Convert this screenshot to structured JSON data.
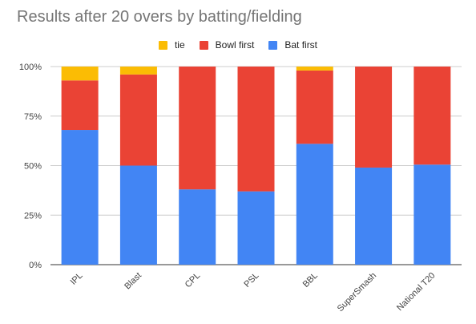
{
  "chart_data": {
    "type": "bar",
    "stacked": true,
    "title": "Results after 20 overs by batting/fielding",
    "xlabel": "",
    "ylabel": "",
    "ylim": [
      0,
      1
    ],
    "y_ticks": [
      "0%",
      "25%",
      "50%",
      "75%",
      "100%"
    ],
    "grid": true,
    "legend_position": "top",
    "categories": [
      "IPL",
      "Blast",
      "CPL",
      "PSL",
      "BBL",
      "SuperSmash",
      "National T20"
    ],
    "series": [
      {
        "name": "Bat first",
        "color": "#4285F4",
        "values": [
          0.68,
          0.5,
          0.38,
          0.37,
          0.61,
          0.49,
          0.505
        ]
      },
      {
        "name": "Bowl first",
        "color": "#EA4335",
        "values": [
          0.25,
          0.46,
          0.62,
          0.63,
          0.37,
          0.51,
          0.495
        ]
      },
      {
        "name": "tie",
        "color": "#FBBC04",
        "values": [
          0.07,
          0.04,
          0.0,
          0.0,
          0.02,
          0.0,
          0.0
        ]
      }
    ],
    "legend_order": [
      "tie",
      "Bowl first",
      "Bat first"
    ]
  }
}
